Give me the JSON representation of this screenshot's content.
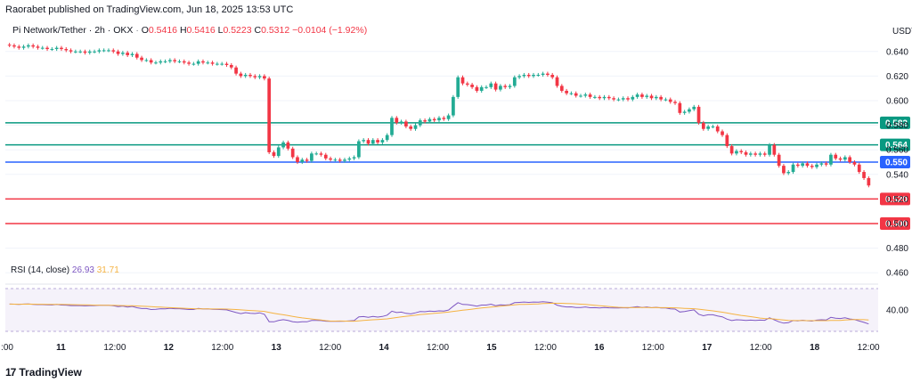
{
  "header": {
    "publisher": "Raorabet published on TradingView.com, Jun 18, 2025 13:53 UTC"
  },
  "legend": {
    "symbol": "Pi Network/Tether · 2h · OKX",
    "open_label": "O",
    "open": "0.5416",
    "high_label": "H",
    "high": "0.5416",
    "low_label": "L",
    "low": "0.5223",
    "close_label": "C",
    "close": "0.5312",
    "change": "−0.0104 (−1.92%)"
  },
  "currency": "USDT",
  "rsi_legend": {
    "name": "RSI (14, close)",
    "value1": "26.93",
    "value2": "31.71"
  },
  "brand": {
    "logo": "17",
    "name": "TradingView"
  },
  "colors": {
    "up": "#22ab94",
    "down": "#f23645",
    "support_green": "#089981",
    "support_blue": "#2962ff",
    "support_red": "#f23645",
    "rsi": "#7e57c2",
    "rsi_ma": "#f5b342"
  },
  "chart_data": {
    "type": "candlestick",
    "y_axis": {
      "min": 0.45,
      "max": 0.65,
      "ticks": [
        "0.640",
        "0.620",
        "0.600",
        "0.580",
        "0.560",
        "0.540",
        "0.520",
        "0.500",
        "0.480",
        "0.460"
      ]
    },
    "x_axis": {
      "ticks": [
        ":00",
        "11",
        "12:00",
        "12",
        "12:00",
        "13",
        "12:00",
        "14",
        "12:00",
        "15",
        "12:00",
        "16",
        "12:00",
        "17",
        "12:00",
        "18",
        "12:00"
      ]
    },
    "levels": [
      {
        "value": 0.582,
        "label": "0.582",
        "color": "#089981"
      },
      {
        "value": 0.564,
        "label": "0.564",
        "color": "#089981"
      },
      {
        "value": 0.55,
        "label": "0.550",
        "color": "#2962ff"
      },
      {
        "value": 0.52,
        "label": "0.520",
        "color": "#f23645"
      },
      {
        "value": 0.5,
        "label": "0.500",
        "color": "#f23645"
      }
    ],
    "close": [
      0.645,
      0.644,
      0.643,
      0.644,
      0.645,
      0.644,
      0.643,
      0.643,
      0.642,
      0.642,
      0.643,
      0.642,
      0.641,
      0.64,
      0.64,
      0.64,
      0.639,
      0.64,
      0.64,
      0.641,
      0.641,
      0.641,
      0.64,
      0.638,
      0.639,
      0.637,
      0.638,
      0.635,
      0.633,
      0.633,
      0.631,
      0.631,
      0.632,
      0.632,
      0.633,
      0.632,
      0.632,
      0.631,
      0.63,
      0.63,
      0.632,
      0.631,
      0.631,
      0.63,
      0.63,
      0.63,
      0.629,
      0.627,
      0.622,
      0.62,
      0.621,
      0.62,
      0.619,
      0.62,
      0.618,
      0.558,
      0.555,
      0.562,
      0.566,
      0.561,
      0.554,
      0.55,
      0.552,
      0.551,
      0.557,
      0.557,
      0.556,
      0.553,
      0.552,
      0.552,
      0.551,
      0.552,
      0.553,
      0.554,
      0.567,
      0.568,
      0.565,
      0.568,
      0.566,
      0.568,
      0.572,
      0.586,
      0.582,
      0.583,
      0.579,
      0.577,
      0.58,
      0.584,
      0.583,
      0.585,
      0.584,
      0.586,
      0.585,
      0.588,
      0.603,
      0.619,
      0.614,
      0.613,
      0.611,
      0.608,
      0.611,
      0.611,
      0.614,
      0.609,
      0.612,
      0.611,
      0.612,
      0.619,
      0.62,
      0.621,
      0.62,
      0.621,
      0.621,
      0.622,
      0.621,
      0.619,
      0.612,
      0.608,
      0.606,
      0.606,
      0.604,
      0.604,
      0.605,
      0.603,
      0.603,
      0.602,
      0.603,
      0.602,
      0.601,
      0.601,
      0.602,
      0.601,
      0.603,
      0.605,
      0.603,
      0.604,
      0.602,
      0.603,
      0.601,
      0.601,
      0.599,
      0.598,
      0.59,
      0.591,
      0.593,
      0.595,
      0.582,
      0.577,
      0.579,
      0.579,
      0.575,
      0.572,
      0.563,
      0.557,
      0.559,
      0.558,
      0.556,
      0.557,
      0.556,
      0.557,
      0.556,
      0.564,
      0.556,
      0.547,
      0.541,
      0.542,
      0.548,
      0.547,
      0.549,
      0.547,
      0.546,
      0.548,
      0.549,
      0.548,
      0.556,
      0.553,
      0.552,
      0.554,
      0.55,
      0.548,
      0.542,
      0.537,
      0.531
    ],
    "rsi": [
      45.5,
      45.4,
      45.2,
      45.5,
      45.7,
      45.2,
      45.0,
      45.0,
      44.8,
      44.7,
      45.2,
      44.6,
      44.5,
      44.1,
      44.1,
      44.1,
      43.8,
      44.1,
      44.1,
      44.4,
      44.4,
      44.4,
      43.9,
      43.2,
      43.7,
      42.7,
      43.3,
      42.1,
      41.3,
      41.3,
      40.4,
      40.6,
      41.2,
      41.0,
      41.6,
      41.2,
      41.2,
      40.8,
      40.4,
      40.4,
      41.5,
      40.9,
      41.1,
      40.6,
      40.5,
      40.3,
      40.1,
      38.8,
      37.6,
      36.6,
      37.5,
      36.9,
      36.7,
      37.3,
      35.9,
      29.0,
      28.9,
      30.2,
      30.9,
      30.2,
      29.0,
      28.5,
      29.0,
      28.9,
      30.2,
      30.2,
      30.1,
      29.5,
      29.4,
      29.4,
      29.3,
      29.5,
      29.8,
      30.1,
      33.6,
      33.8,
      33.1,
      33.9,
      33.3,
      33.9,
      35.2,
      38.8,
      37.6,
      38.0,
      36.8,
      36.3,
      37.3,
      38.5,
      38.3,
      38.9,
      38.7,
      39.2,
      39.0,
      39.9,
      43.5,
      46.8,
      45.2,
      45.0,
      44.4,
      43.6,
      44.6,
      44.6,
      45.4,
      44.0,
      44.8,
      44.6,
      44.9,
      46.8,
      47.1,
      47.4,
      47.1,
      47.4,
      47.3,
      47.7,
      47.3,
      46.8,
      44.5,
      43.4,
      42.8,
      42.9,
      42.3,
      42.3,
      42.8,
      42.1,
      42.2,
      41.9,
      42.3,
      42.0,
      41.8,
      41.8,
      42.1,
      41.8,
      42.5,
      43.1,
      42.3,
      42.8,
      42.1,
      42.5,
      41.8,
      41.8,
      41.1,
      40.8,
      38.1,
      38.6,
      39.3,
      40.1,
      36.0,
      34.6,
      35.5,
      35.5,
      34.4,
      33.6,
      31.4,
      30.1,
      30.8,
      30.6,
      30.2,
      30.5,
      30.2,
      30.5,
      30.3,
      32.7,
      30.8,
      28.9,
      27.7,
      28.1,
      30.1,
      29.8,
      30.4,
      29.9,
      29.6,
      30.5,
      30.8,
      30.6,
      33.1,
      32.3,
      32.0,
      32.7,
      31.6,
      31.0,
      29.7,
      28.4,
      26.9
    ],
    "rsi_level_label": "40.00"
  }
}
